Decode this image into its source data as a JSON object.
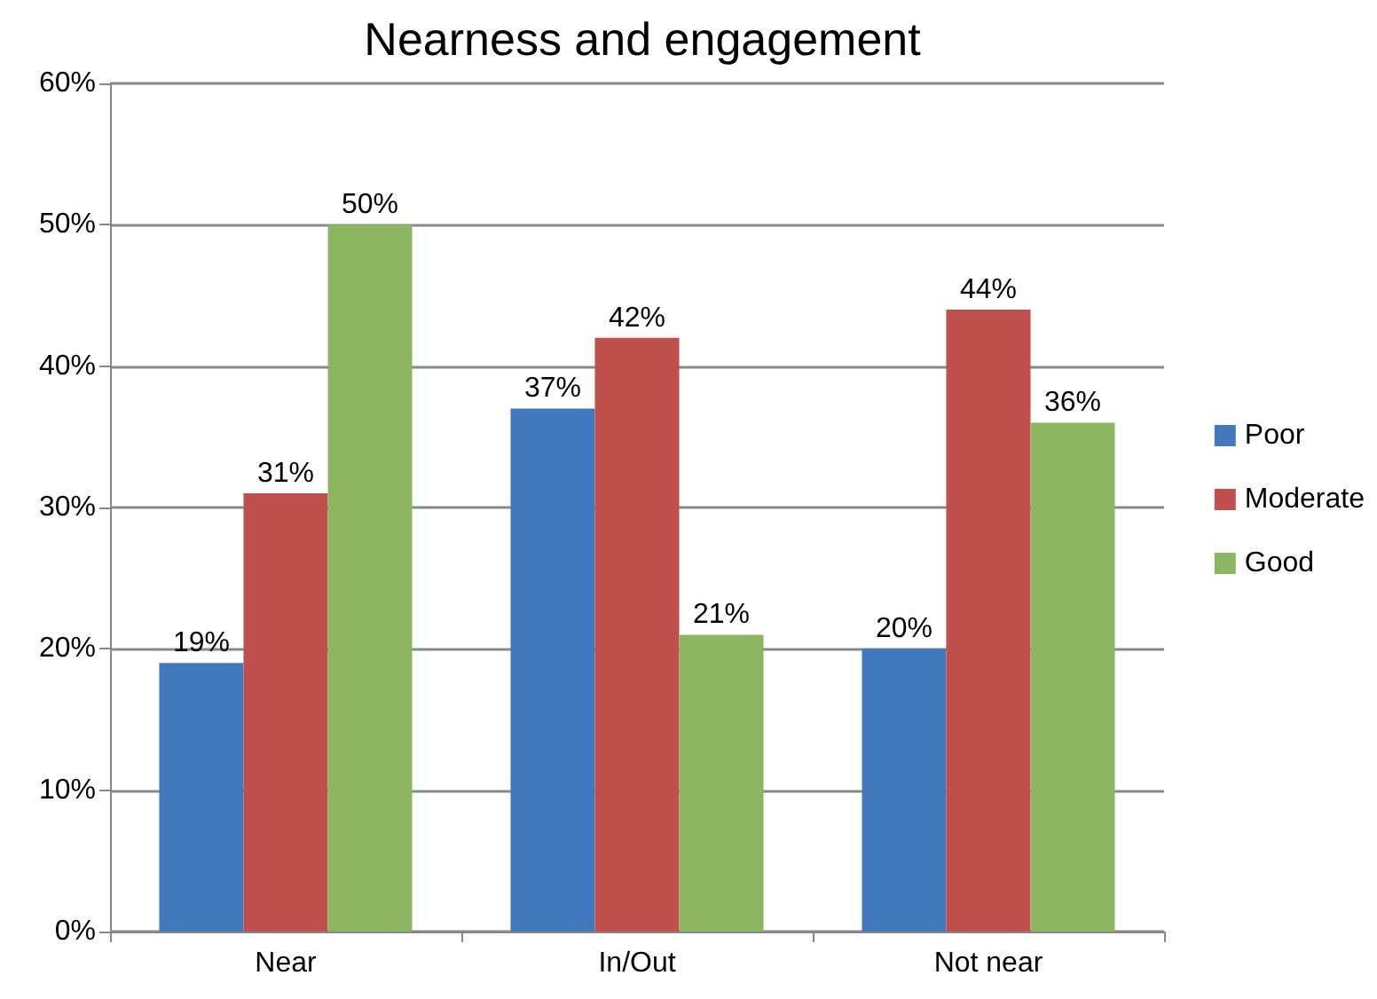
{
  "chart_data": {
    "type": "bar",
    "title": "Nearness and engagement",
    "categories": [
      "Near",
      "In/Out",
      "Not near"
    ],
    "series": [
      {
        "name": "Poor",
        "color": "#4279bd",
        "values": [
          19,
          37,
          20
        ],
        "value_labels": [
          "19%",
          "37%",
          "20%"
        ]
      },
      {
        "name": "Moderate",
        "color": "#c0504d",
        "values": [
          31,
          42,
          44
        ],
        "value_labels": [
          "31%",
          "42%",
          "44%"
        ]
      },
      {
        "name": "Good",
        "color": "#8cb662",
        "values": [
          50,
          21,
          36
        ],
        "value_labels": [
          "50%",
          "21%",
          "36%"
        ]
      }
    ],
    "ylim": [
      0,
      60
    ],
    "yticks": [
      {
        "value": 0,
        "label": "0%"
      },
      {
        "value": 10,
        "label": "10%"
      },
      {
        "value": 20,
        "label": "20%"
      },
      {
        "value": 30,
        "label": "30%"
      },
      {
        "value": 40,
        "label": "40%"
      },
      {
        "value": 50,
        "label": "50%"
      },
      {
        "value": 60,
        "label": "60%"
      }
    ],
    "grid": "y",
    "legend": "right"
  }
}
